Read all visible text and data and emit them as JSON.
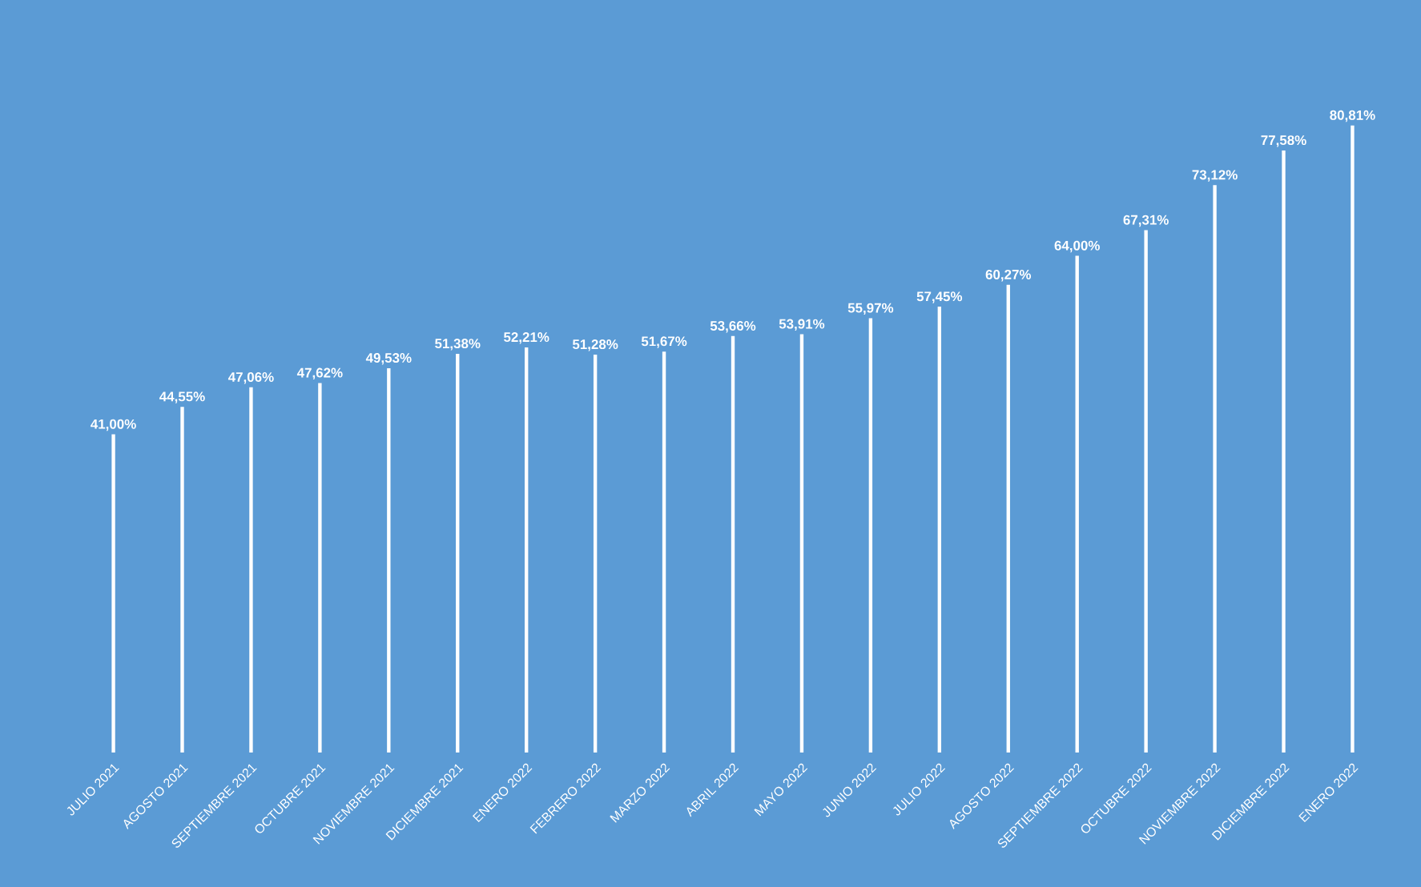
{
  "chart_data": {
    "type": "bar",
    "categories": [
      "JULIO 2021",
      "AGOSTO 2021",
      "SEPTIEMBRE 2021",
      "OCTUBRE 2021",
      "NOVIEMBRE 2021",
      "DICIEMBRE 2021",
      "ENERO 2022",
      "FEBRERO 2022",
      "MARZO 2022",
      "ABRIL 2022",
      "MAYO 2022",
      "JUNIO 2022",
      "JULIO 2022",
      "AGOSTO 2022",
      "SEPTIEMBRE 2022",
      "OCTUBRE 2022",
      "NOVIEMBRE 2022",
      "DICIEMBRE 2022",
      "ENERO 2022"
    ],
    "values": [
      41.0,
      44.55,
      47.06,
      47.62,
      49.53,
      51.38,
      52.21,
      51.28,
      51.67,
      53.66,
      53.91,
      55.97,
      57.45,
      60.27,
      64.0,
      67.31,
      73.12,
      77.58,
      80.81
    ],
    "value_labels": [
      "41,00%",
      "44,55%",
      "47,06%",
      "47,62%",
      "49,53%",
      "51,38%",
      "52,21%",
      "51,28%",
      "51,67%",
      "53,66%",
      "53,91%",
      "55,97%",
      "57,45%",
      "60,27%",
      "64,00%",
      "67,31%",
      "73,12%",
      "77,58%",
      "80,81%"
    ],
    "color": "#ffffff",
    "tick_labels": "x"
  }
}
